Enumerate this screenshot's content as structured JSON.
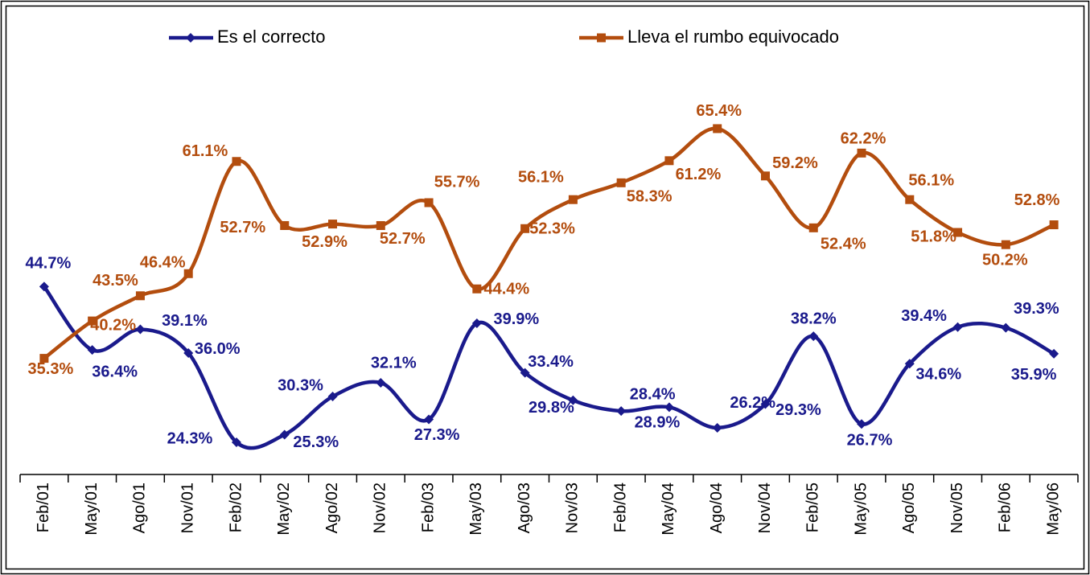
{
  "chart_data": {
    "type": "line",
    "categories": [
      "Feb/01",
      "May/01",
      "Ago/01",
      "Nov/01",
      "Feb/02",
      "May/02",
      "Ago/02",
      "Nov/02",
      "Feb/03",
      "May/03",
      "Ago/03",
      "Nov/03",
      "Feb/04",
      "May/04",
      "Ago/04",
      "Nov/04",
      "Feb/05",
      "May/05",
      "Ago/05",
      "Nov/05",
      "Feb/06",
      "May/06"
    ],
    "series": [
      {
        "name": "Es el correcto",
        "color": "#1a1a8c",
        "marker": "diamond",
        "values": [
          44.7,
          36.4,
          39.1,
          36.0,
          24.3,
          25.3,
          30.3,
          32.1,
          27.3,
          39.9,
          33.4,
          29.8,
          28.4,
          28.9,
          26.2,
          29.3,
          38.2,
          26.7,
          34.6,
          39.4,
          39.3,
          35.9
        ],
        "value_labels": [
          "44.7%",
          "36.4%",
          "39.1%",
          "36.0%",
          "24.3%",
          "25.3%",
          "30.3%",
          "32.1%",
          "27.3%",
          "39.9%",
          "33.4%",
          "29.8%",
          "28.4%",
          "28.9%",
          "26.2%",
          "29.3%",
          "38.2%",
          "26.7%",
          "34.6%",
          "39.4%",
          "39.3%",
          "35.9%"
        ]
      },
      {
        "name": "Lleva el rumbo equivocado",
        "color": "#b34d0e",
        "marker": "square",
        "values": [
          35.3,
          40.2,
          43.5,
          46.4,
          61.1,
          52.7,
          52.9,
          52.7,
          55.7,
          44.4,
          52.3,
          56.1,
          58.3,
          61.2,
          65.4,
          59.2,
          52.4,
          62.2,
          56.1,
          51.8,
          50.2,
          52.8
        ],
        "value_labels": [
          "35.3%",
          "40.2%",
          "43.5%",
          "46.4%",
          "61.1%",
          "52.7%",
          "52.9%",
          "52.7%",
          "55.7%",
          "44.4%",
          "52.3%",
          "56.1%",
          "58.3%",
          "61.2%",
          "65.4%",
          "59.2%",
          "52.4%",
          "62.2%",
          "56.1%",
          "51.8%",
          "50.2%",
          "52.8%"
        ]
      }
    ],
    "legend": "top"
  }
}
